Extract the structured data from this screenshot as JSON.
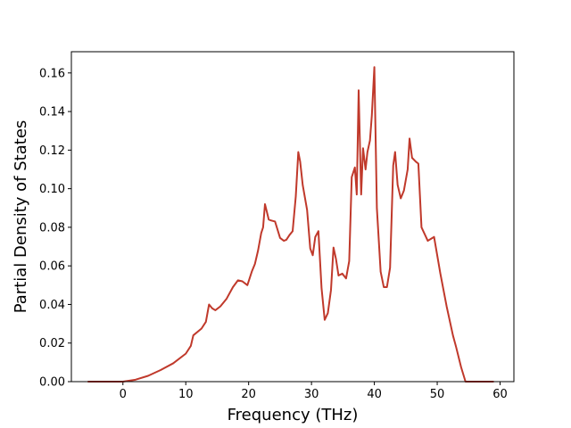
{
  "chart_data": {
    "type": "line",
    "title": "",
    "xlabel": "Frequency (THz)",
    "ylabel": "Partial Density of States",
    "xlim": [
      -8.2,
      62.2
    ],
    "ylim": [
      0,
      0.171
    ],
    "grid": false,
    "x_ticks": [
      0,
      10,
      20,
      30,
      40,
      50,
      60
    ],
    "y_ticks": [
      0.0,
      0.02,
      0.04,
      0.06,
      0.08,
      0.1,
      0.12,
      0.14,
      0.16
    ],
    "x_tick_labels": [
      "0",
      "10",
      "20",
      "30",
      "40",
      "50",
      "60"
    ],
    "y_tick_labels": [
      "0.00",
      "0.02",
      "0.04",
      "0.06",
      "0.08",
      "0.10",
      "0.12",
      "0.14",
      "0.16"
    ],
    "series": [
      {
        "color": "#c0392b",
        "x": [
          -5.6,
          0,
          2,
          4,
          6,
          8,
          10,
          10.8,
          11.2,
          12.5,
          13.2,
          13.7,
          14.2,
          14.7,
          15.5,
          16.5,
          17.5,
          18.3,
          19.0,
          19.8,
          20.2,
          20.5,
          21.0,
          21.5,
          22.0,
          22.3,
          22.6,
          23.2,
          23.6,
          24.2,
          25.0,
          25.6,
          26.0,
          26.5,
          27.0,
          27.5,
          27.9,
          28.2,
          28.6,
          29.3,
          29.8,
          30.2,
          30.6,
          31.1,
          31.6,
          32.1,
          32.6,
          33.1,
          33.5,
          33.9,
          34.3,
          34.9,
          35.5,
          36.0,
          36.4,
          36.9,
          37.2,
          37.5,
          37.9,
          38.2,
          38.6,
          38.9,
          39.3,
          39.6,
          40.0,
          40.4,
          41.0,
          41.5,
          42.0,
          42.5,
          43.0,
          43.3,
          43.7,
          44.2,
          44.7,
          45.3,
          45.6,
          46.0,
          46.6,
          47.0,
          47.5,
          48.5,
          49.0,
          49.5,
          50.5,
          51.5,
          52.5,
          53.0,
          53.8,
          54.5,
          59.0
        ],
        "y": [
          0,
          0,
          0.001,
          0.003,
          0.006,
          0.0095,
          0.0145,
          0.0185,
          0.024,
          0.0275,
          0.031,
          0.04,
          0.038,
          0.037,
          0.039,
          0.043,
          0.049,
          0.0525,
          0.052,
          0.05,
          0.054,
          0.057,
          0.061,
          0.068,
          0.077,
          0.08,
          0.092,
          0.084,
          0.0835,
          0.083,
          0.0745,
          0.073,
          0.0735,
          0.076,
          0.078,
          0.096,
          0.119,
          0.114,
          0.102,
          0.089,
          0.069,
          0.0655,
          0.075,
          0.078,
          0.0485,
          0.032,
          0.0355,
          0.0475,
          0.0695,
          0.0635,
          0.055,
          0.056,
          0.0535,
          0.0625,
          0.106,
          0.111,
          0.097,
          0.151,
          0.097,
          0.121,
          0.11,
          0.119,
          0.125,
          0.138,
          0.163,
          0.09,
          0.057,
          0.049,
          0.049,
          0.059,
          0.112,
          0.119,
          0.102,
          0.095,
          0.099,
          0.11,
          0.126,
          0.116,
          0.114,
          0.113,
          0.08,
          0.073,
          0.074,
          0.075,
          0.056,
          0.039,
          0.024,
          0.018,
          0.0075,
          0,
          0
        ]
      }
    ]
  }
}
